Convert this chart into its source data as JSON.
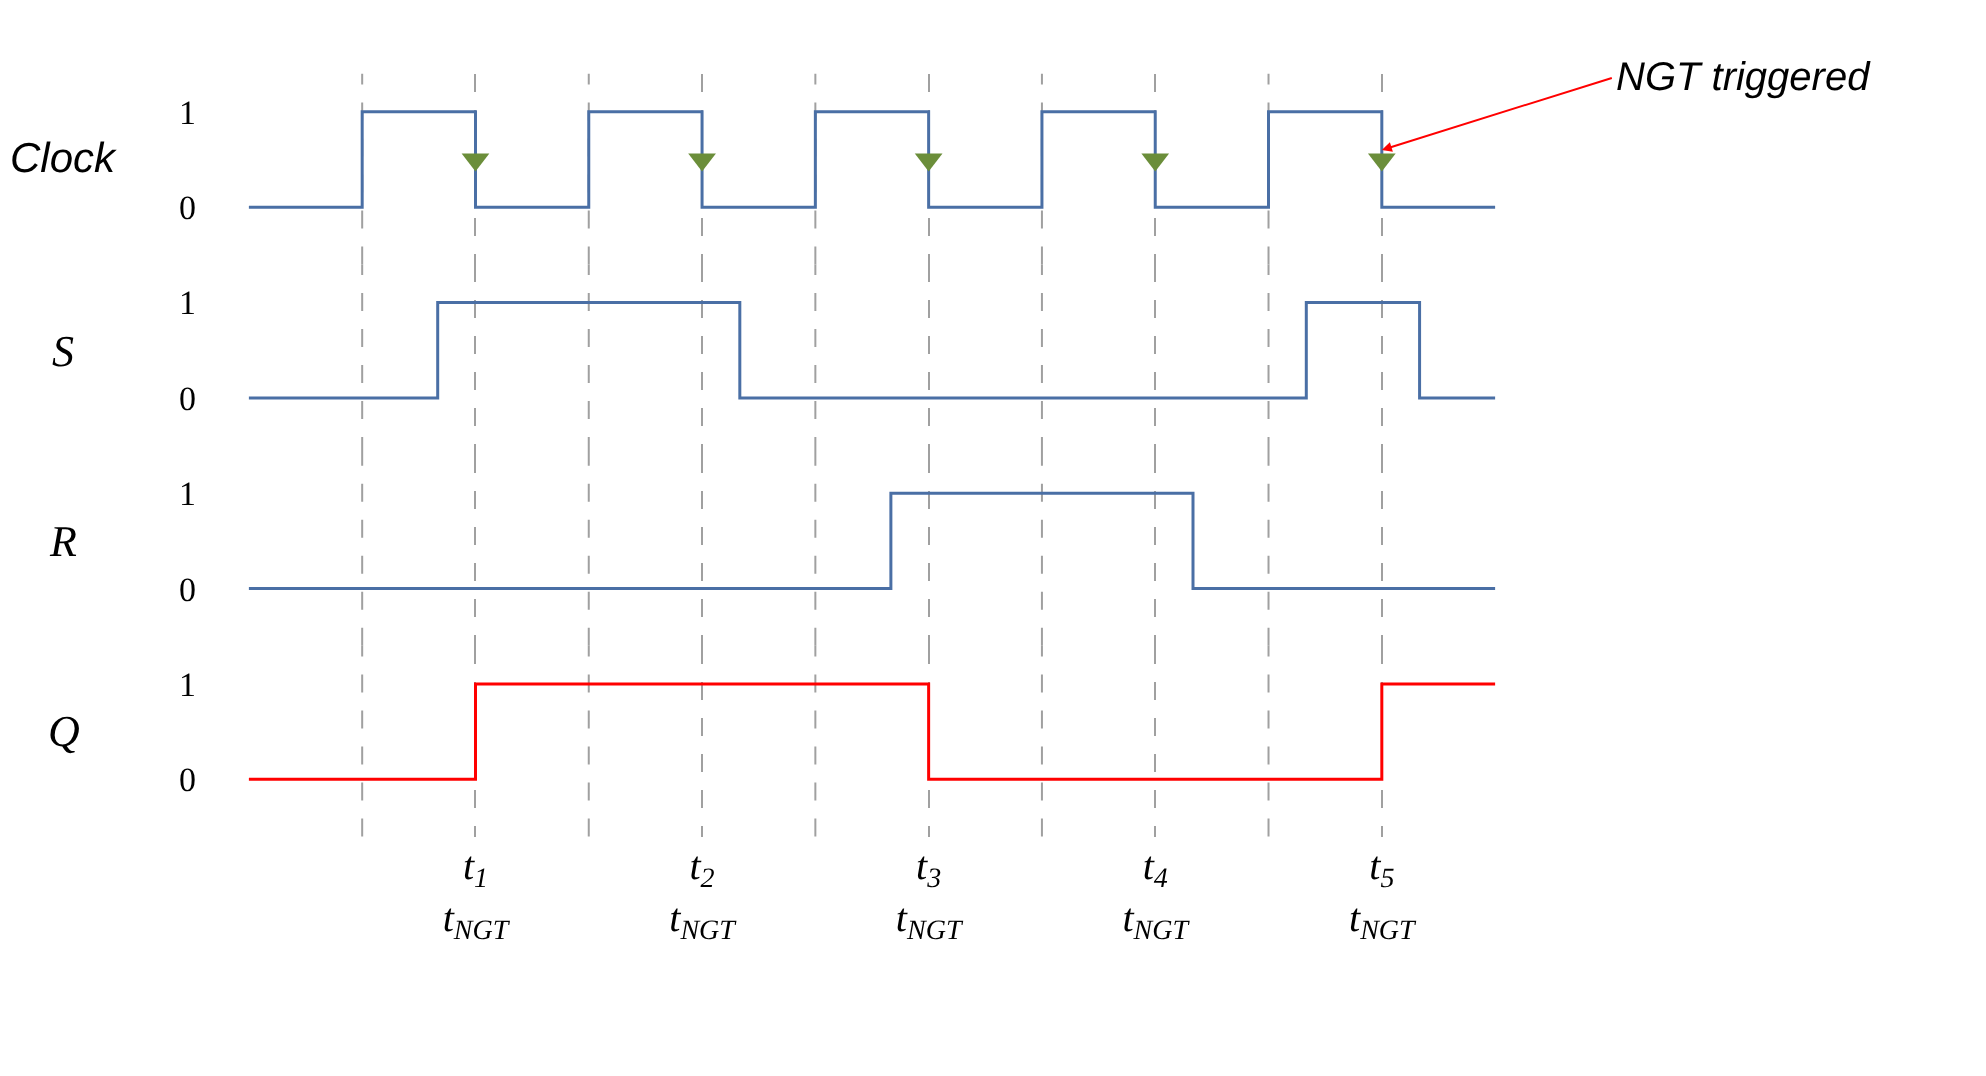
{
  "chart_data": [
    {
      "type": "step",
      "ylabel": "Clock",
      "ylim": [
        -0.6,
        1.4
      ],
      "yticks": [
        0,
        1
      ],
      "tick_labels": "y",
      "grid": "x",
      "legend": false,
      "categories": [
        null,
        null,
        null,
        null,
        null,
        null,
        "t$_{1}$\nt$_{NGT}$",
        null,
        null,
        null,
        null,
        null,
        "t$_{2}$\nt$_{NGT}$",
        null,
        null,
        null,
        null,
        null,
        "t$_{3}$\nt$_{NGT}$",
        null,
        null,
        null,
        null,
        null,
        "t$_{4}$\nt$_{NGT}$",
        null,
        null,
        null,
        null,
        null,
        "t$_{5}$\nt$_{NGT}$",
        null,
        null,
        null
      ],
      "series": [
        {
          "color": "#4a6fa5",
          "values": [
            0,
            0,
            0,
            1,
            1,
            1,
            0,
            0,
            0,
            1,
            1,
            1,
            0,
            0,
            0,
            1,
            1,
            1,
            0,
            0,
            0,
            1,
            1,
            1,
            0,
            0,
            0,
            1,
            1,
            1,
            0,
            0,
            0,
            0
          ]
        },
        {
          "type": "scatter",
          "marker": "triangle",
          "color": "#6b8e3a",
          "values": [
            null,
            null,
            null,
            null,
            null,
            null,
            0.5,
            null,
            null,
            null,
            null,
            null,
            0.5,
            null,
            null,
            null,
            null,
            null,
            0.5,
            null,
            null,
            null,
            null,
            null,
            0.5,
            null,
            null,
            null,
            null,
            null,
            0.5,
            null,
            null,
            null
          ]
        }
      ],
      "annotations": [
        {
          "text": "NGT triggered",
          "x": "t$_{5}$\nt$_{NGT}$",
          "y": 0.6
        }
      ]
    },
    {
      "type": "step",
      "ylabel": "S",
      "ylim": [
        -0.6,
        1.4
      ],
      "yticks": [
        0,
        1
      ],
      "tick_labels": "y",
      "grid": "x",
      "legend": false,
      "categories": [
        null,
        null,
        null,
        null,
        null,
        null,
        "t$_{1}$\nt$_{NGT}$",
        null,
        null,
        null,
        null,
        null,
        "t$_{2}$\nt$_{NGT}$",
        null,
        null,
        null,
        null,
        null,
        "t$_{3}$\nt$_{NGT}$",
        null,
        null,
        null,
        null,
        null,
        "t$_{4}$\nt$_{NGT}$",
        null,
        null,
        null,
        null,
        null,
        "t$_{5}$\nt$_{NGT}$",
        null,
        null,
        null
      ],
      "series": [
        {
          "color": "#4a6fa5",
          "values": [
            0,
            0,
            0,
            0,
            0,
            1,
            1,
            1,
            1,
            1,
            1,
            1,
            1,
            0,
            0,
            0,
            0,
            0,
            0,
            0,
            0,
            0,
            0,
            0,
            0,
            0,
            0,
            0,
            1,
            1,
            1,
            0,
            0,
            0
          ]
        }
      ]
    },
    {
      "type": "step",
      "ylabel": "R",
      "ylim": [
        -0.6,
        1.4
      ],
      "yticks": [
        0,
        1
      ],
      "tick_labels": "y",
      "grid": "x",
      "legend": false,
      "categories": [
        null,
        null,
        null,
        null,
        null,
        null,
        "t$_{1}$\nt$_{NGT}$",
        null,
        null,
        null,
        null,
        null,
        "t$_{2}$\nt$_{NGT}$",
        null,
        null,
        null,
        null,
        null,
        "t$_{3}$\nt$_{NGT}$",
        null,
        null,
        null,
        null,
        null,
        "t$_{4}$\nt$_{NGT}$",
        null,
        null,
        null,
        null,
        null,
        "t$_{5}$\nt$_{NGT}$",
        null,
        null,
        null
      ],
      "series": [
        {
          "color": "#4a6fa5",
          "values": [
            0,
            0,
            0,
            0,
            0,
            0,
            0,
            0,
            0,
            0,
            0,
            0,
            0,
            0,
            0,
            0,
            0,
            1,
            1,
            1,
            1,
            1,
            1,
            1,
            1,
            0,
            0,
            0,
            0,
            0,
            0,
            0,
            0,
            0
          ]
        }
      ]
    },
    {
      "type": "step",
      "ylabel": "Q",
      "ylim": [
        -0.6,
        1.4
      ],
      "yticks": [
        0,
        1
      ],
      "grid": "x",
      "legend": false,
      "categories": [
        null,
        null,
        null,
        null,
        null,
        null,
        "t$_{1}$\nt$_{NGT}$",
        null,
        null,
        null,
        null,
        null,
        "t$_{2}$\nt$_{NGT}$",
        null,
        null,
        null,
        null,
        null,
        "t$_{3}$\nt$_{NGT}$",
        null,
        null,
        null,
        null,
        null,
        "t$_{4}$\nt$_{NGT}$",
        null,
        null,
        null,
        null,
        null,
        "t$_{5}$\nt$_{NGT}$",
        null,
        null,
        null
      ],
      "series": [
        {
          "color": "#ff0000",
          "values": [
            0,
            0,
            0,
            0,
            0,
            0,
            1,
            1,
            1,
            1,
            1,
            1,
            1,
            1,
            1,
            1,
            1,
            1,
            0,
            0,
            0,
            0,
            0,
            0,
            0,
            0,
            0,
            0,
            0,
            0,
            1,
            1,
            1,
            1
          ]
        }
      ]
    }
  ]
}
